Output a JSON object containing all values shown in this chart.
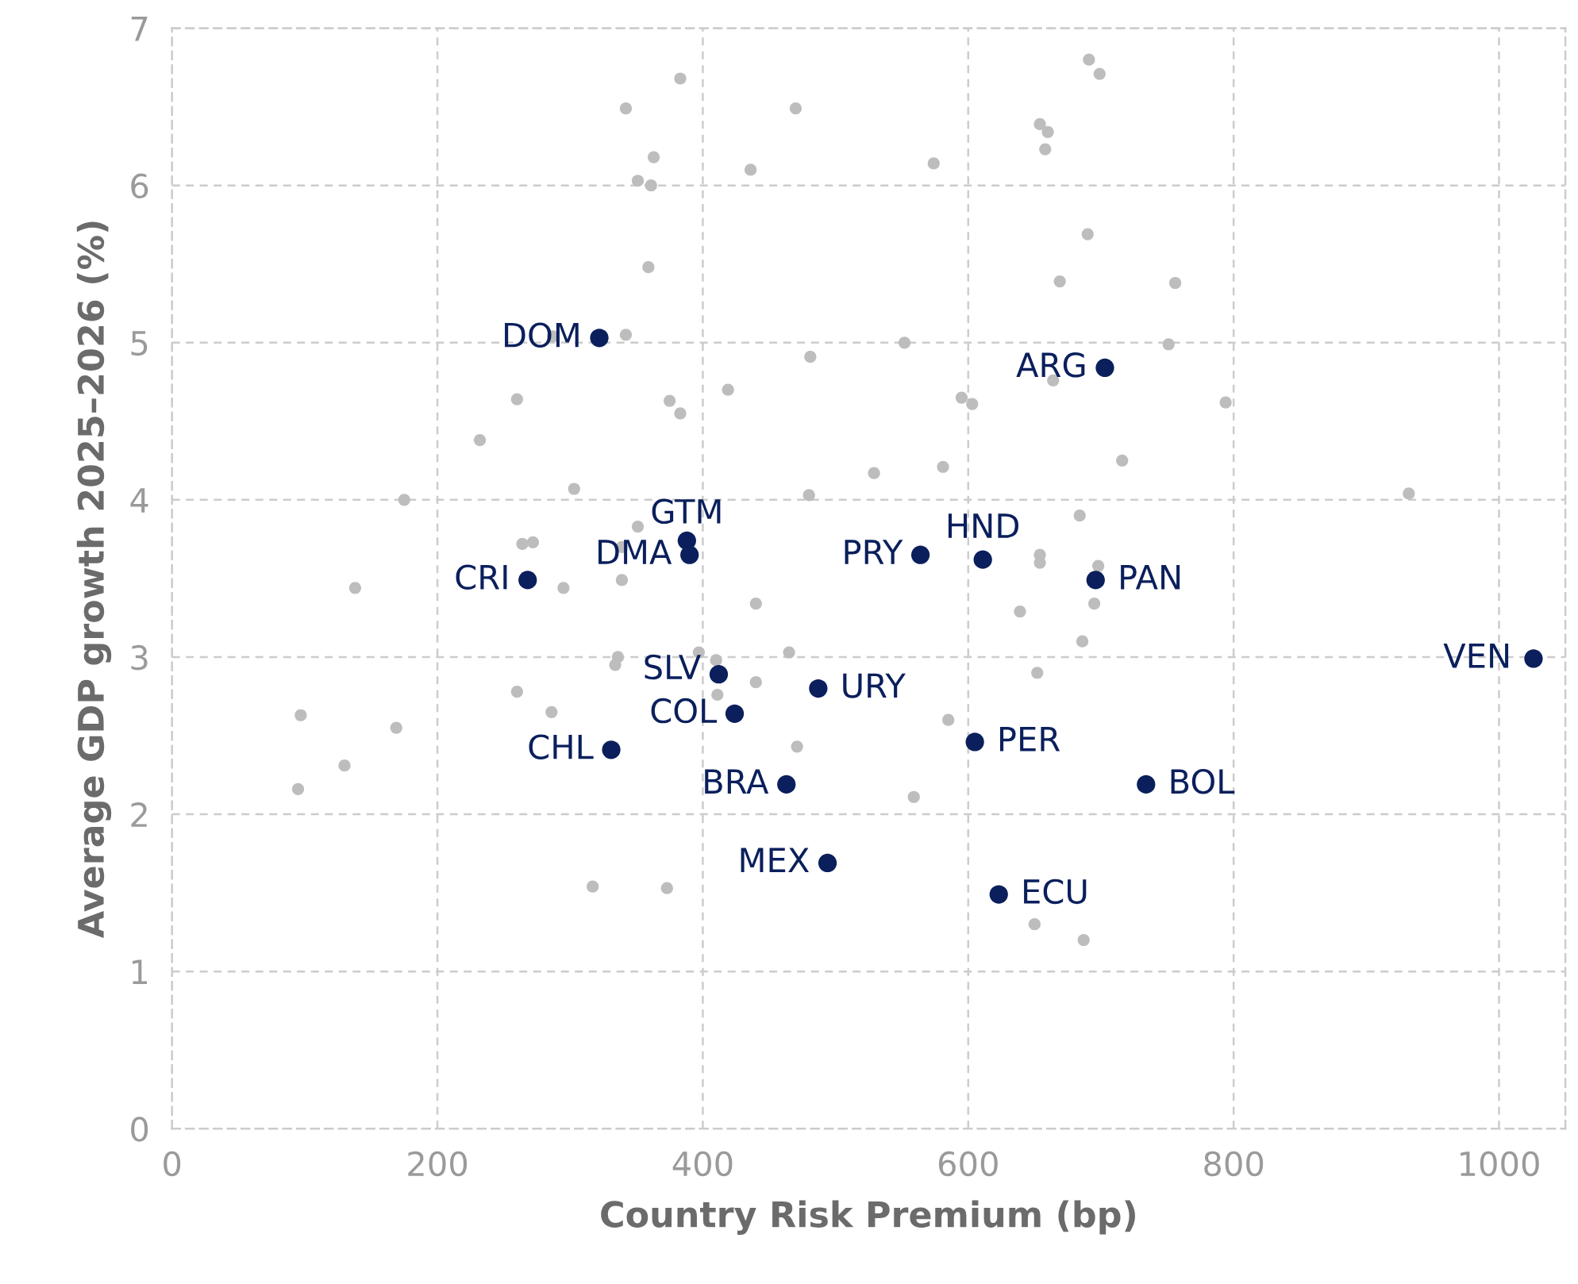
{
  "chart_data": {
    "type": "scatter",
    "xlabel": "Country Risk Premium (bp)",
    "ylabel": "Average GDP growth 2025–2026 (%)",
    "xlim": [
      0,
      1050
    ],
    "xticks": [
      0,
      200,
      400,
      600,
      800,
      1000
    ],
    "ylim": [
      0,
      7
    ],
    "yticks": [
      0,
      1,
      2,
      3,
      4,
      5,
      6,
      7
    ],
    "grid": true,
    "marker": "circle",
    "series": [
      {
        "color": "#bdbdbd",
        "x": [
          383,
          342,
          363,
          351,
          361,
          359,
          287,
          342,
          260,
          375,
          383,
          232,
          303,
          175,
          351,
          264,
          272,
          339,
          691,
          699,
          470,
          654,
          660,
          658,
          436,
          574,
          690,
          669,
          756,
          552,
          751,
          481,
          419,
          664,
          595,
          603,
          794,
          716,
          529,
          581,
          480,
          684,
          654,
          654,
          698,
          932,
          138,
          295,
          339,
          336,
          334,
          397,
          260,
          286,
          97,
          169,
          130,
          95,
          317,
          373,
          440,
          639,
          695,
          686,
          410,
          465,
          440,
          411,
          652,
          585,
          471,
          559,
          650,
          687
        ],
        "values": [
          6.68,
          6.49,
          6.18,
          6.03,
          6.0,
          5.48,
          5.04,
          5.05,
          4.64,
          4.63,
          4.55,
          4.38,
          4.07,
          4.0,
          3.83,
          3.72,
          3.73,
          3.7,
          6.8,
          6.71,
          6.49,
          6.39,
          6.34,
          6.23,
          6.1,
          6.14,
          5.69,
          5.39,
          5.38,
          5.0,
          4.99,
          4.91,
          4.7,
          4.76,
          4.65,
          4.61,
          4.62,
          4.25,
          4.17,
          4.21,
          4.03,
          3.9,
          3.65,
          3.6,
          3.58,
          4.04,
          3.44,
          3.44,
          3.49,
          3.0,
          2.95,
          3.03,
          2.78,
          2.65,
          2.63,
          2.55,
          2.31,
          2.16,
          1.54,
          1.53,
          3.34,
          3.29,
          3.34,
          3.1,
          2.98,
          3.03,
          2.84,
          2.76,
          2.9,
          2.6,
          2.43,
          2.11,
          1.3,
          1.2
        ]
      },
      {
        "color": "#0a1f5c",
        "x": [
          322,
          703,
          388,
          390,
          268,
          564,
          611,
          696,
          1026,
          412,
          487,
          424,
          331,
          605,
          463,
          734,
          494,
          623
        ],
        "values": [
          5.03,
          4.84,
          3.74,
          3.65,
          3.49,
          3.65,
          3.62,
          3.49,
          2.99,
          2.89,
          2.8,
          2.64,
          2.41,
          2.46,
          2.19,
          2.19,
          1.69,
          1.49
        ]
      }
    ],
    "annotations": [
      {
        "text": "DOM",
        "x": 322,
        "y": 5.03
      },
      {
        "text": "ARG",
        "x": 703,
        "y": 4.84
      },
      {
        "text": "GTM",
        "x": 388,
        "y": 3.74
      },
      {
        "text": "DMA",
        "x": 390,
        "y": 3.65
      },
      {
        "text": "CRI",
        "x": 268,
        "y": 3.49
      },
      {
        "text": "PRY",
        "x": 564,
        "y": 3.65
      },
      {
        "text": "HND",
        "x": 611,
        "y": 3.62
      },
      {
        "text": "PAN",
        "x": 696,
        "y": 3.49
      },
      {
        "text": "VEN",
        "x": 1026,
        "y": 2.99
      },
      {
        "text": "SLV",
        "x": 412,
        "y": 2.89
      },
      {
        "text": "URY",
        "x": 487,
        "y": 2.8
      },
      {
        "text": "COL",
        "x": 424,
        "y": 2.64
      },
      {
        "text": "CHL",
        "x": 331,
        "y": 2.41
      },
      {
        "text": "PER",
        "x": 605,
        "y": 2.46
      },
      {
        "text": "BRA",
        "x": 463,
        "y": 2.19
      },
      {
        "text": "BOL",
        "x": 734,
        "y": 2.19
      },
      {
        "text": "MEX",
        "x": 494,
        "y": 1.69
      },
      {
        "text": "ECU",
        "x": 623,
        "y": 1.49
      }
    ]
  }
}
